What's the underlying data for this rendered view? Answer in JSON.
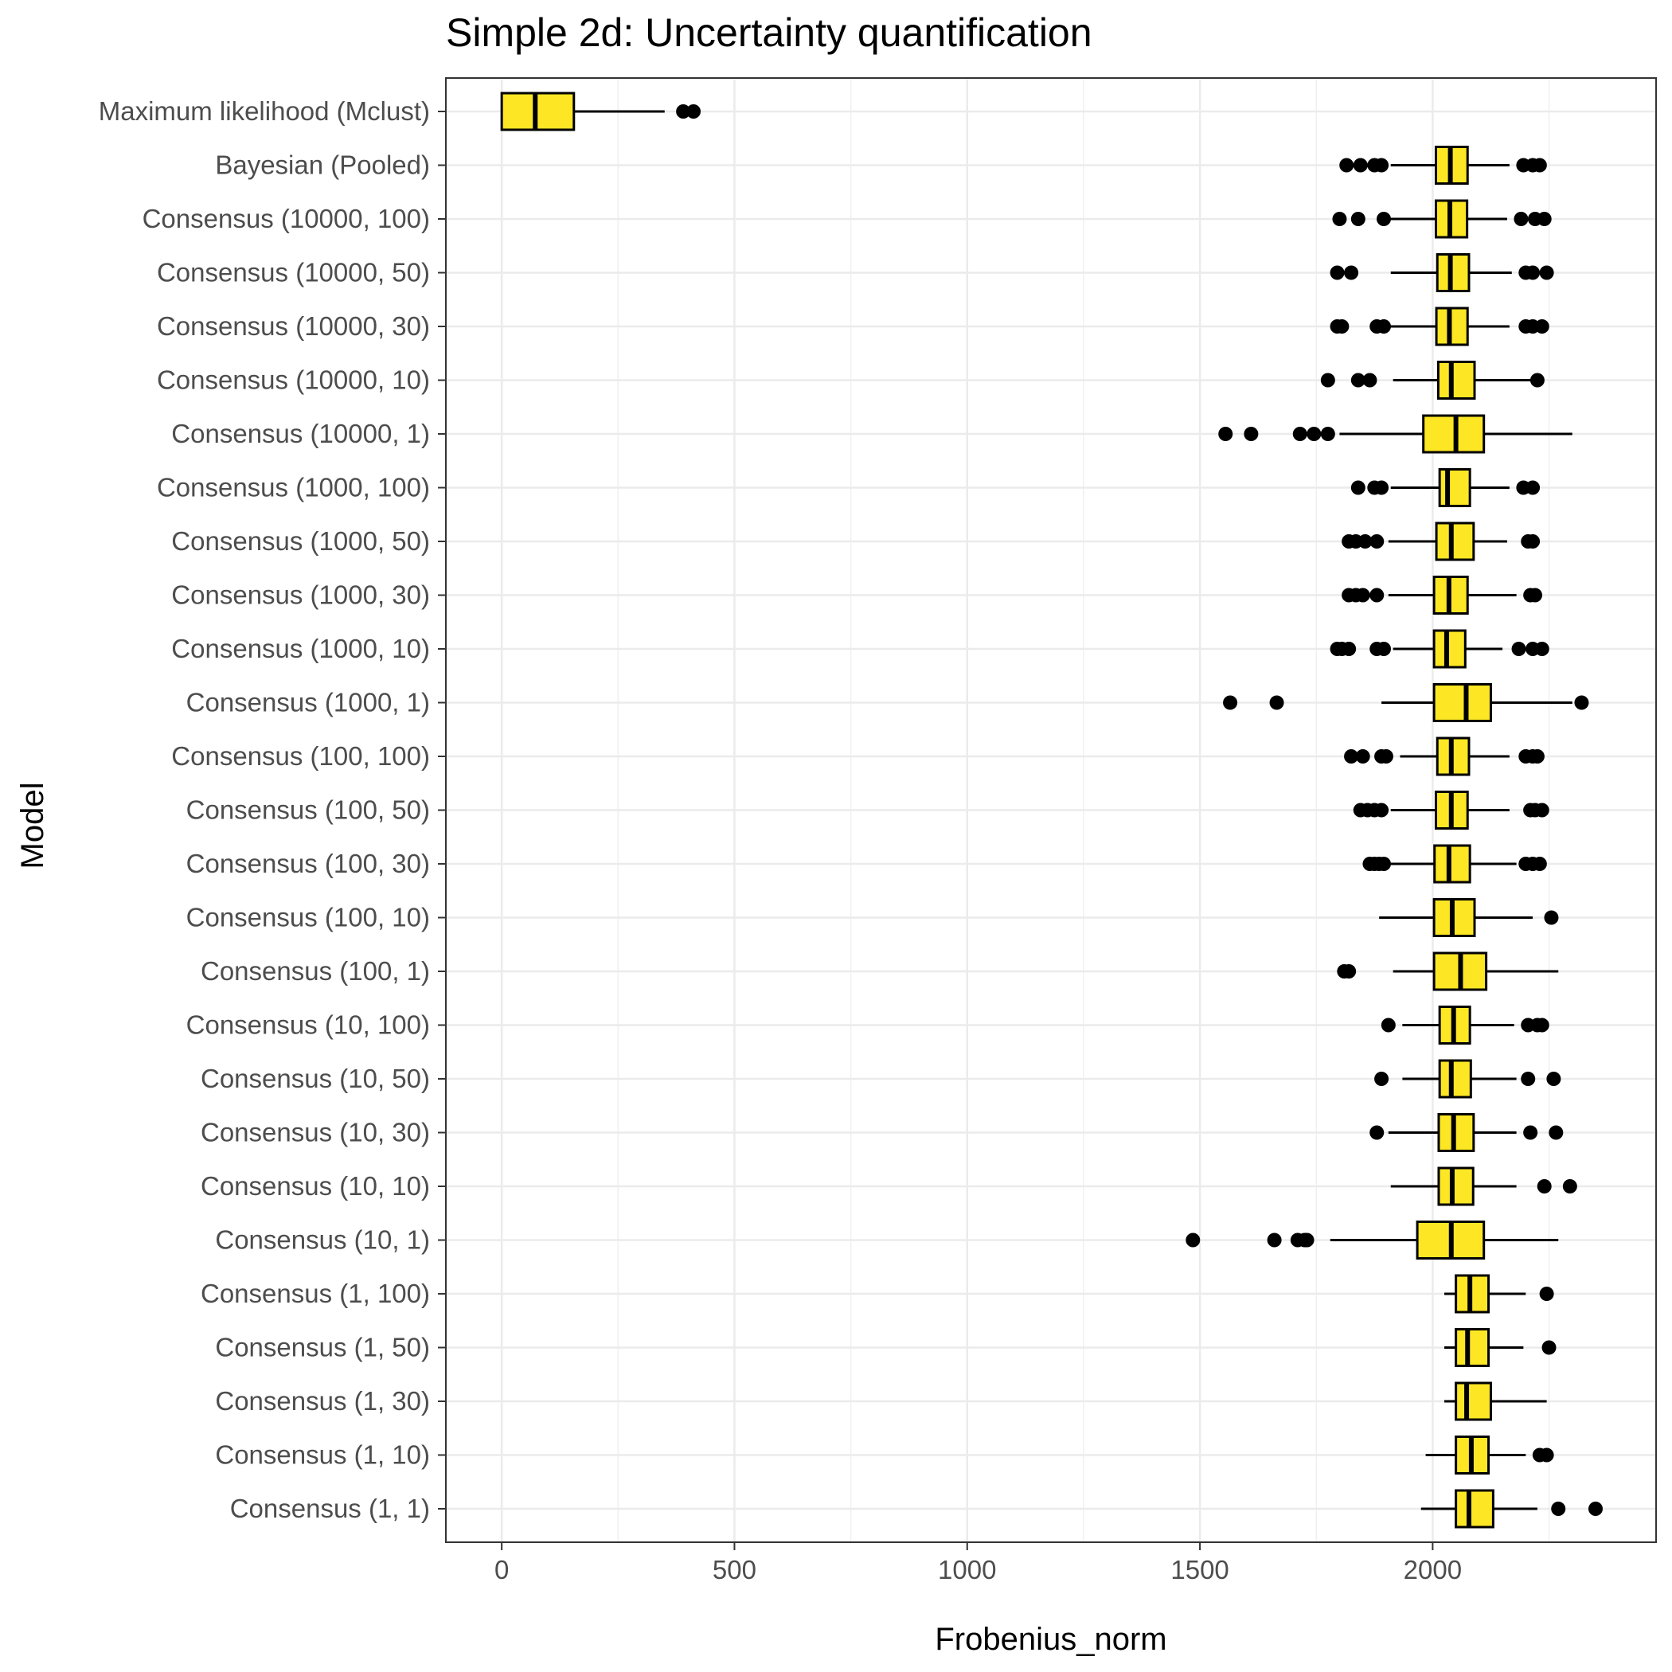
{
  "chart_data": {
    "type": "boxplot",
    "orientation": "horizontal",
    "title": "Simple 2d: Uncertainty quantification",
    "xlabel": "Frobenius_norm",
    "ylabel": "Model",
    "xlim": [
      -120,
      2480
    ],
    "xticks": [
      0,
      500,
      1000,
      1500,
      2000
    ],
    "grid": true,
    "fill_color": "#FDE725",
    "outline_color": "#000000",
    "categories": [
      "Maximum likelihood (Mclust)",
      "Bayesian (Pooled)",
      "Consensus (10000, 100)",
      "Consensus (10000, 50)",
      "Consensus (10000, 30)",
      "Consensus (10000, 10)",
      "Consensus (10000, 1)",
      "Consensus (1000, 100)",
      "Consensus (1000, 50)",
      "Consensus (1000, 30)",
      "Consensus (1000, 10)",
      "Consensus (1000, 1)",
      "Consensus (100, 100)",
      "Consensus (100, 50)",
      "Consensus (100, 30)",
      "Consensus (100, 10)",
      "Consensus (100, 1)",
      "Consensus (10, 100)",
      "Consensus (10, 50)",
      "Consensus (10, 30)",
      "Consensus (10, 10)",
      "Consensus (10, 1)",
      "Consensus (1, 100)",
      "Consensus (1, 50)",
      "Consensus (1, 30)",
      "Consensus (1, 10)",
      "Consensus (1, 1)"
    ],
    "boxes": [
      {
        "min": 0,
        "q1": 0,
        "median": 72,
        "q3": 155,
        "max": 350,
        "outliers": [
          390,
          412
        ]
      },
      {
        "min": 1910,
        "q1": 2007,
        "median": 2038,
        "q3": 2075,
        "max": 2165,
        "outliers": [
          1815,
          1845,
          1875,
          1890,
          2195,
          2215,
          2230
        ]
      },
      {
        "min": 1905,
        "q1": 2007,
        "median": 2037,
        "q3": 2074,
        "max": 2160,
        "outliers": [
          1800,
          1840,
          1895,
          2190,
          2220,
          2240
        ]
      },
      {
        "min": 1910,
        "q1": 2010,
        "median": 2038,
        "q3": 2078,
        "max": 2170,
        "outliers": [
          1795,
          1825,
          2200,
          2215,
          2245
        ]
      },
      {
        "min": 1905,
        "q1": 2008,
        "median": 2036,
        "q3": 2075,
        "max": 2165,
        "outliers": [
          1795,
          1805,
          1880,
          1895,
          2200,
          2215,
          2235
        ]
      },
      {
        "min": 1915,
        "q1": 2012,
        "median": 2040,
        "q3": 2090,
        "max": 2215,
        "outliers": [
          1775,
          1840,
          1865,
          2225
        ]
      },
      {
        "min": 1800,
        "q1": 1980,
        "median": 2050,
        "q3": 2110,
        "max": 2300,
        "outliers": [
          1555,
          1610,
          1715,
          1745,
          1775
        ]
      },
      {
        "min": 1910,
        "q1": 2015,
        "median": 2032,
        "q3": 2080,
        "max": 2165,
        "outliers": [
          1840,
          1875,
          1890,
          2195,
          2215
        ]
      },
      {
        "min": 1905,
        "q1": 2008,
        "median": 2040,
        "q3": 2088,
        "max": 2160,
        "outliers": [
          1820,
          1835,
          1855,
          1880,
          2205,
          2215
        ]
      },
      {
        "min": 1905,
        "q1": 2003,
        "median": 2035,
        "q3": 2075,
        "max": 2180,
        "outliers": [
          1820,
          1835,
          1850,
          1880,
          2210,
          2220
        ]
      },
      {
        "min": 1915,
        "q1": 2003,
        "median": 2030,
        "q3": 2070,
        "max": 2150,
        "outliers": [
          1795,
          1805,
          1820,
          1880,
          1895,
          2185,
          2215,
          2235
        ]
      },
      {
        "min": 1890,
        "q1": 2003,
        "median": 2072,
        "q3": 2125,
        "max": 2300,
        "outliers": [
          1565,
          1665,
          2320
        ]
      },
      {
        "min": 1930,
        "q1": 2010,
        "median": 2040,
        "q3": 2078,
        "max": 2165,
        "outliers": [
          1825,
          1850,
          1890,
          1900,
          2200,
          2215,
          2225
        ]
      },
      {
        "min": 1910,
        "q1": 2007,
        "median": 2040,
        "q3": 2075,
        "max": 2165,
        "outliers": [
          1845,
          1860,
          1875,
          1890,
          2210,
          2220,
          2235
        ]
      },
      {
        "min": 1910,
        "q1": 2004,
        "median": 2035,
        "q3": 2080,
        "max": 2180,
        "outliers": [
          1865,
          1875,
          1885,
          1895,
          2200,
          2215,
          2230
        ]
      },
      {
        "min": 1885,
        "q1": 2003,
        "median": 2042,
        "q3": 2090,
        "max": 2215,
        "outliers": [
          2255
        ]
      },
      {
        "min": 1915,
        "q1": 2003,
        "median": 2060,
        "q3": 2115,
        "max": 2270,
        "outliers": [
          1810,
          1820
        ]
      },
      {
        "min": 1935,
        "q1": 2015,
        "median": 2045,
        "q3": 2080,
        "max": 2175,
        "outliers": [
          1905,
          2205,
          2225,
          2235
        ]
      },
      {
        "min": 1935,
        "q1": 2015,
        "median": 2040,
        "q3": 2082,
        "max": 2180,
        "outliers": [
          1890,
          2205,
          2260
        ]
      },
      {
        "min": 1905,
        "q1": 2013,
        "median": 2045,
        "q3": 2088,
        "max": 2180,
        "outliers": [
          1880,
          2210,
          2265
        ]
      },
      {
        "min": 1910,
        "q1": 2013,
        "median": 2042,
        "q3": 2087,
        "max": 2180,
        "outliers": [
          2240,
          2295
        ]
      },
      {
        "min": 1780,
        "q1": 1967,
        "median": 2040,
        "q3": 2110,
        "max": 2270,
        "outliers": [
          1485,
          1660,
          1710,
          1725,
          1730
        ]
      },
      {
        "min": 2025,
        "q1": 2050,
        "median": 2080,
        "q3": 2120,
        "max": 2200,
        "outliers": [
          2245
        ]
      },
      {
        "min": 2025,
        "q1": 2050,
        "median": 2075,
        "q3": 2120,
        "max": 2195,
        "outliers": [
          2250
        ]
      },
      {
        "min": 2025,
        "q1": 2050,
        "median": 2073,
        "q3": 2125,
        "max": 2245,
        "outliers": []
      },
      {
        "min": 1985,
        "q1": 2050,
        "median": 2083,
        "q3": 2120,
        "max": 2200,
        "outliers": [
          2230,
          2245
        ]
      },
      {
        "min": 1975,
        "q1": 2050,
        "median": 2078,
        "q3": 2130,
        "max": 2225,
        "outliers": [
          2270,
          2350
        ]
      }
    ]
  }
}
